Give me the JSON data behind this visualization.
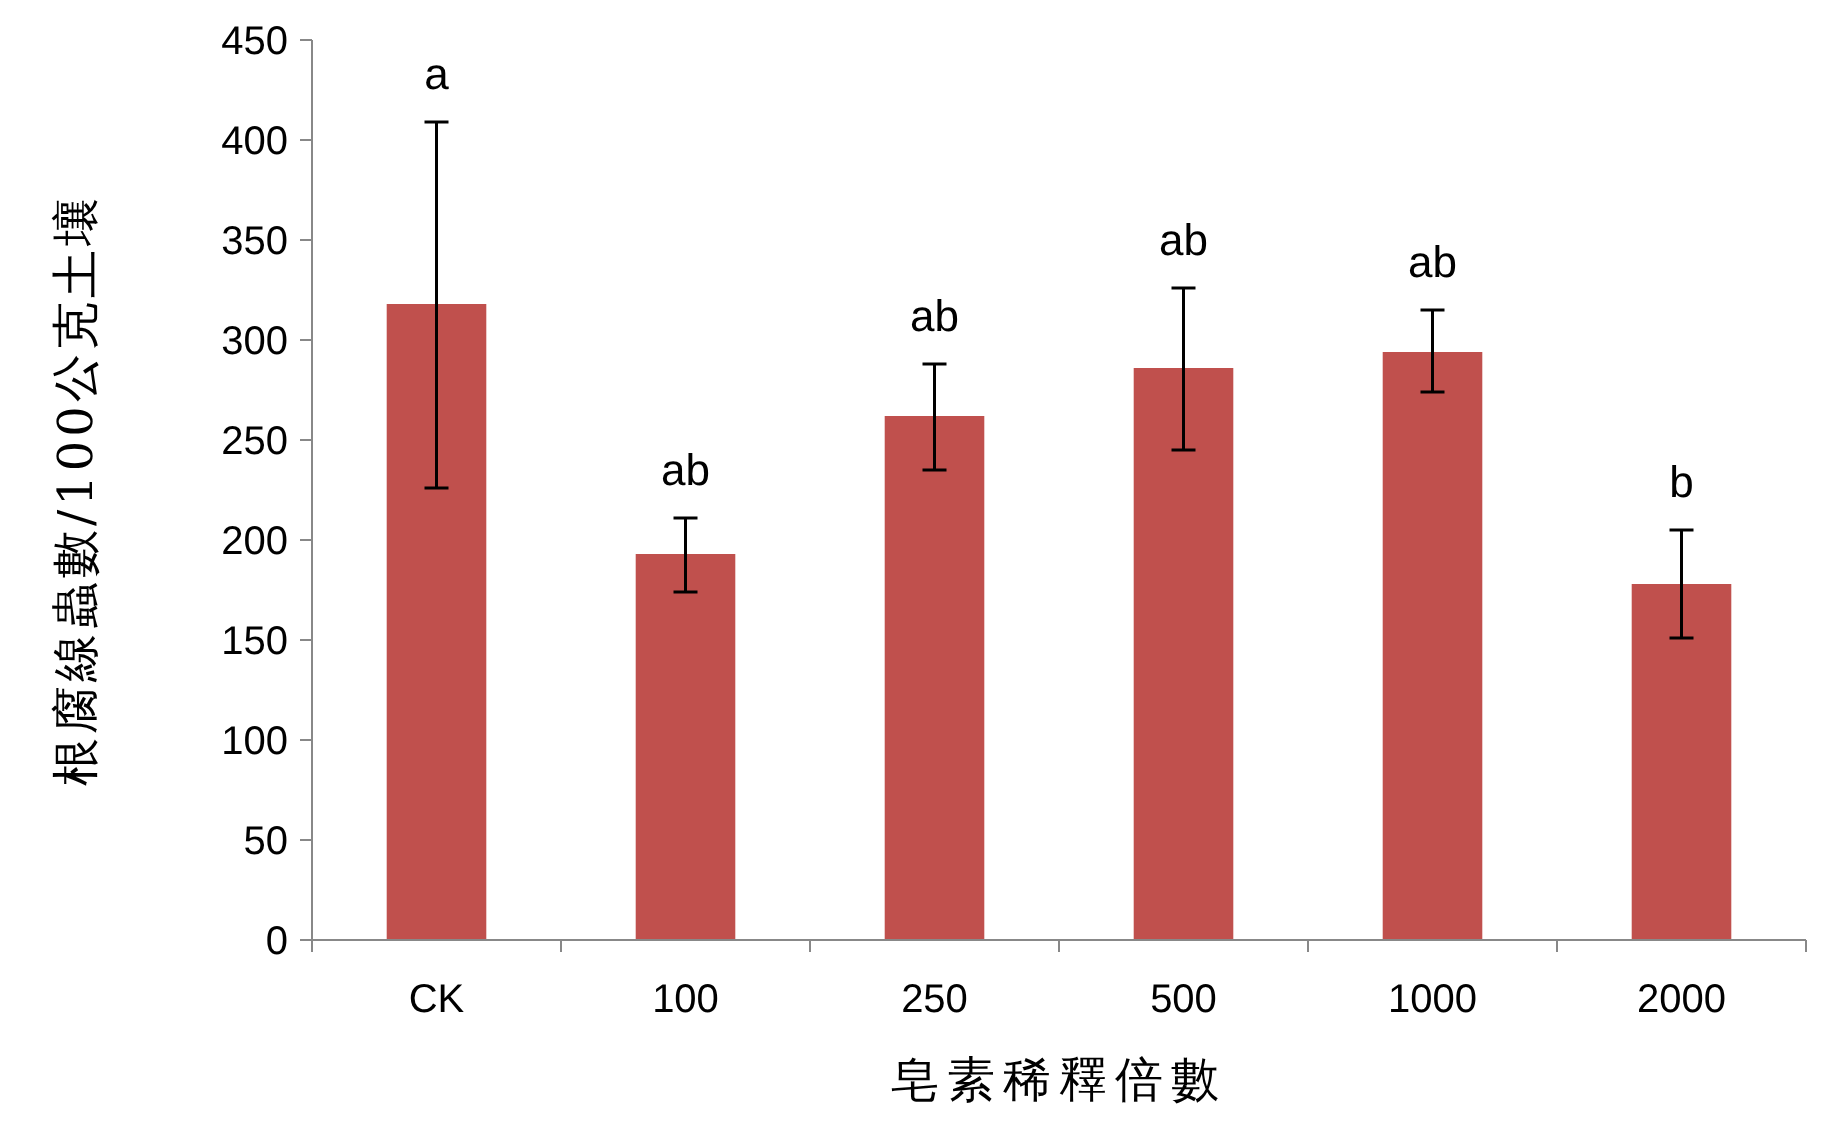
{
  "chart_data": {
    "type": "bar",
    "xlabel": "皂素稀釋倍數",
    "ylabel": "根腐線蟲數/100公克土壤",
    "categories": [
      "CK",
      "100",
      "250",
      "500",
      "1000",
      "2000"
    ],
    "values": [
      318,
      193,
      262,
      286,
      294,
      178
    ],
    "errors": [
      [
        226,
        409
      ],
      [
        174,
        211
      ],
      [
        235,
        288
      ],
      [
        245,
        326
      ],
      [
        274,
        315
      ],
      [
        151,
        205
      ]
    ],
    "color": "#c0504d",
    "ylim": [
      0,
      450
    ],
    "yticks": [
      0,
      50,
      100,
      150,
      200,
      250,
      300,
      350,
      400,
      450
    ],
    "grid": false,
    "annotations": [
      "a",
      "ab",
      "ab",
      "ab",
      "ab",
      "b"
    ]
  }
}
